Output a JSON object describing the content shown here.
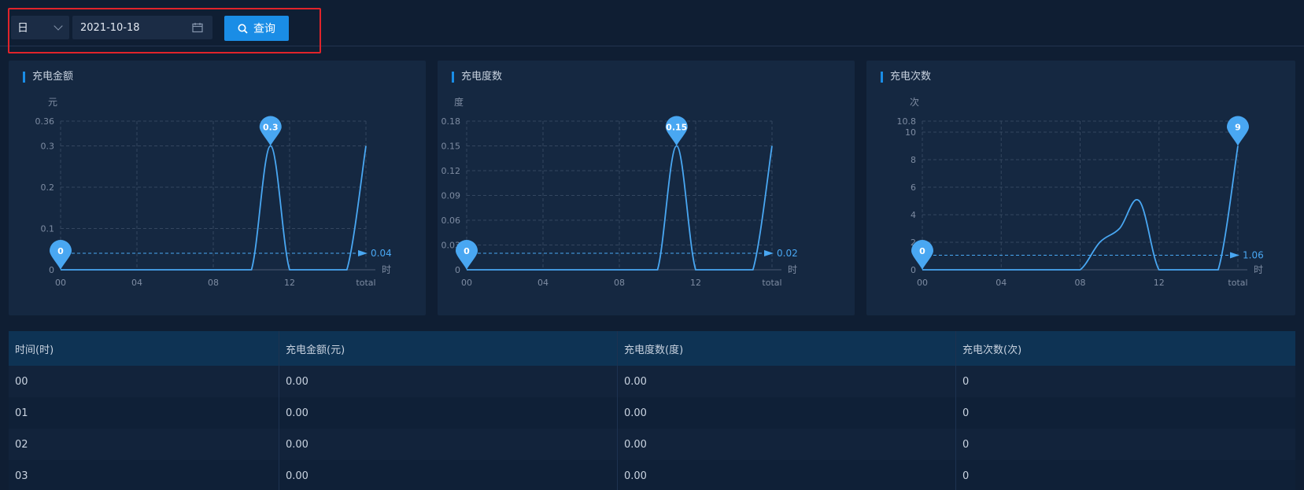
{
  "filters": {
    "period": "日",
    "date": "2021-10-18",
    "query_label": "查询"
  },
  "charts": [
    {
      "title": "充电金额",
      "unit": "元",
      "y_ticks": [
        "0",
        "0.1",
        "0.2",
        "0.3",
        "0.36"
      ],
      "y_tick_values": [
        0,
        0.1,
        0.2,
        0.3,
        0.36
      ],
      "ymax": 0.36,
      "x_ticks": [
        "00",
        "04",
        "08",
        "12",
        "total"
      ],
      "x_unit": "时",
      "max_label": "0.3",
      "max_value": 0.3,
      "min_label": "0",
      "avg_label": "0.04",
      "avg_value": 0.04,
      "color": "#49a7f2"
    },
    {
      "title": "充电度数",
      "unit": "度",
      "y_ticks": [
        "0",
        "0.03",
        "0.06",
        "0.09",
        "0.12",
        "0.15",
        "0.18"
      ],
      "y_tick_values": [
        0,
        0.03,
        0.06,
        0.09,
        0.12,
        0.15,
        0.18
      ],
      "ymax": 0.18,
      "x_ticks": [
        "00",
        "04",
        "08",
        "12",
        "total"
      ],
      "x_unit": "时",
      "max_label": "0.15",
      "max_value": 0.15,
      "min_label": "0",
      "avg_label": "0.02",
      "avg_value": 0.02,
      "color": "#49a7f2"
    },
    {
      "title": "充电次数",
      "unit": "次",
      "y_ticks": [
        "0",
        "2",
        "4",
        "6",
        "8",
        "10",
        "10.8"
      ],
      "y_tick_values": [
        0,
        2,
        4,
        6,
        8,
        10,
        10.8
      ],
      "ymax": 10.8,
      "x_ticks": [
        "00",
        "04",
        "08",
        "12",
        "total"
      ],
      "x_unit": "时",
      "max_label": "9",
      "max_value": 9,
      "min_label": "0",
      "avg_label": "1.06",
      "avg_value": 1.06,
      "color": "#49a7f2"
    }
  ],
  "chart_data": [
    {
      "type": "line",
      "title": "充电金额",
      "x": [
        "00",
        "01",
        "02",
        "03",
        "04",
        "05",
        "06",
        "07",
        "08",
        "09",
        "10",
        "11",
        "12",
        "13",
        "14",
        "15",
        "total"
      ],
      "series": [
        {
          "values": [
            0,
            0,
            0,
            0,
            0,
            0,
            0,
            0,
            0,
            0,
            0,
            0.3,
            0,
            0,
            0,
            0,
            0.3
          ]
        }
      ],
      "ylabel": "元",
      "xlabel": "时",
      "ylim": [
        0,
        0.36
      ]
    },
    {
      "type": "line",
      "title": "充电度数",
      "x": [
        "00",
        "01",
        "02",
        "03",
        "04",
        "05",
        "06",
        "07",
        "08",
        "09",
        "10",
        "11",
        "12",
        "13",
        "14",
        "15",
        "total"
      ],
      "series": [
        {
          "values": [
            0,
            0,
            0,
            0,
            0,
            0,
            0,
            0,
            0,
            0,
            0,
            0.15,
            0,
            0,
            0,
            0,
            0.15
          ]
        }
      ],
      "ylabel": "度",
      "xlabel": "时",
      "ylim": [
        0,
        0.18
      ]
    },
    {
      "type": "line",
      "title": "充电次数",
      "x": [
        "00",
        "01",
        "02",
        "03",
        "04",
        "05",
        "06",
        "07",
        "08",
        "09",
        "10",
        "11",
        "12",
        "13",
        "14",
        "15",
        "total"
      ],
      "series": [
        {
          "values": [
            0,
            0,
            0,
            0,
            0,
            0,
            0,
            0,
            0,
            2,
            3,
            5,
            0,
            0,
            0,
            0,
            9
          ]
        }
      ],
      "ylabel": "次",
      "xlabel": "时",
      "ylim": [
        0,
        10.8
      ]
    }
  ],
  "table": {
    "headers": [
      "时间(时)",
      "充电金额(元)",
      "充电度数(度)",
      "充电次数(次)"
    ],
    "rows": [
      [
        "00",
        "0.00",
        "0.00",
        "0"
      ],
      [
        "01",
        "0.00",
        "0.00",
        "0"
      ],
      [
        "02",
        "0.00",
        "0.00",
        "0"
      ],
      [
        "03",
        "0.00",
        "0.00",
        "0"
      ]
    ]
  }
}
